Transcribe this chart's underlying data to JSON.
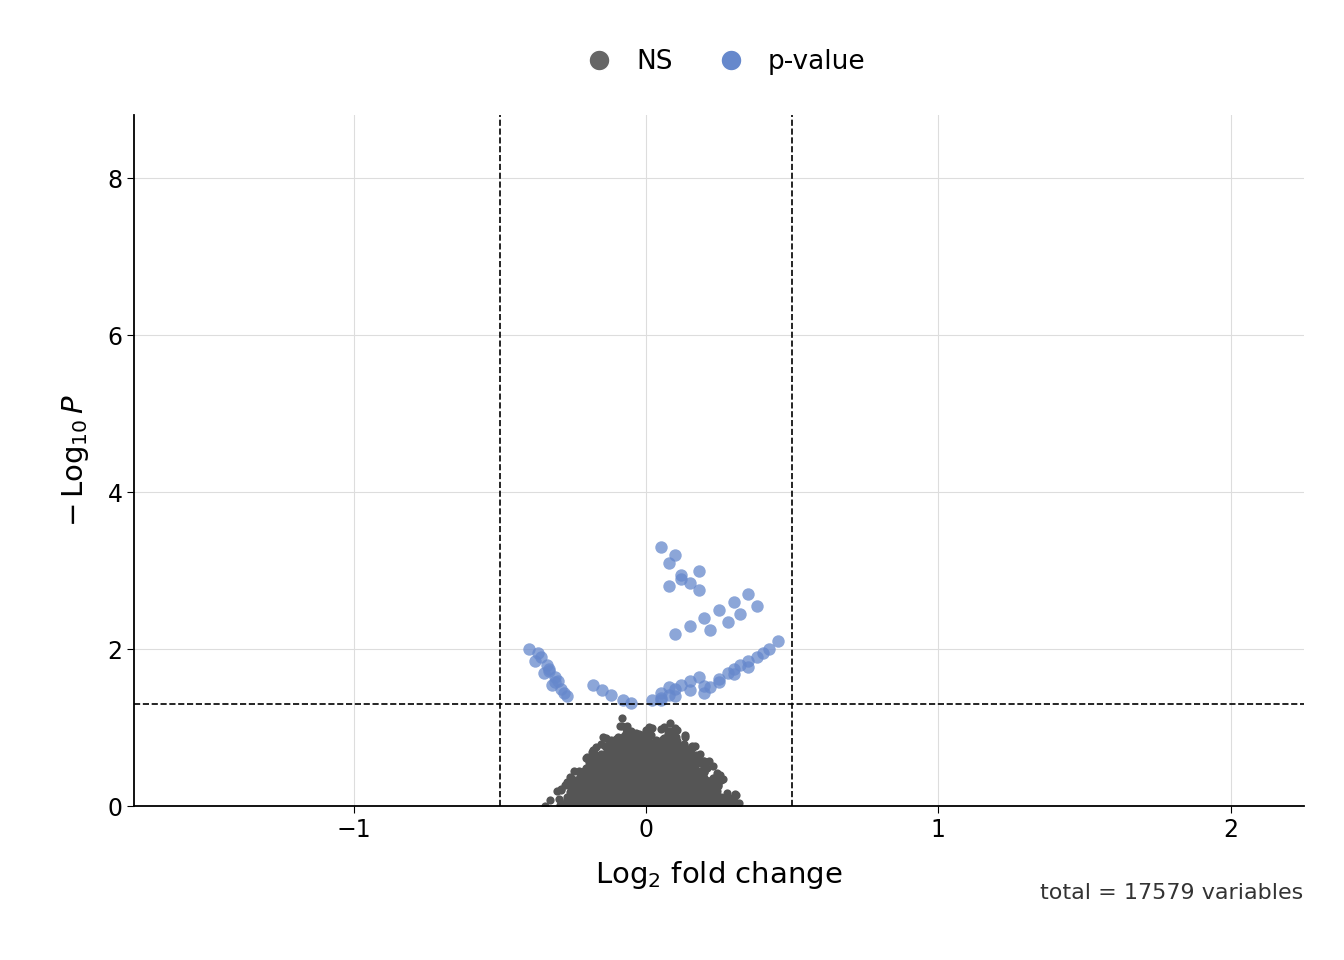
{
  "xlabel": "Log$_2$ fold change",
  "ylabel": "$-\\,\\mathrm{Log}_{10}\\,P$",
  "xlim": [
    -1.75,
    2.25
  ],
  "ylim": [
    0,
    8.8
  ],
  "xticks": [
    -1,
    0,
    1,
    2
  ],
  "yticks": [
    0,
    2,
    4,
    6,
    8
  ],
  "vline_x": [
    -0.5,
    0.5
  ],
  "hline_y": 1.3,
  "ns_color": "#555555",
  "sig_color": "#6688CC",
  "background_color": "#ffffff",
  "grid_color": "#dddddd",
  "annotation": "total = 17579 variables",
  "legend_labels": [
    "NS",
    "p-value"
  ],
  "legend_colors": [
    "#666666",
    "#6688CC"
  ],
  "seed": 42
}
